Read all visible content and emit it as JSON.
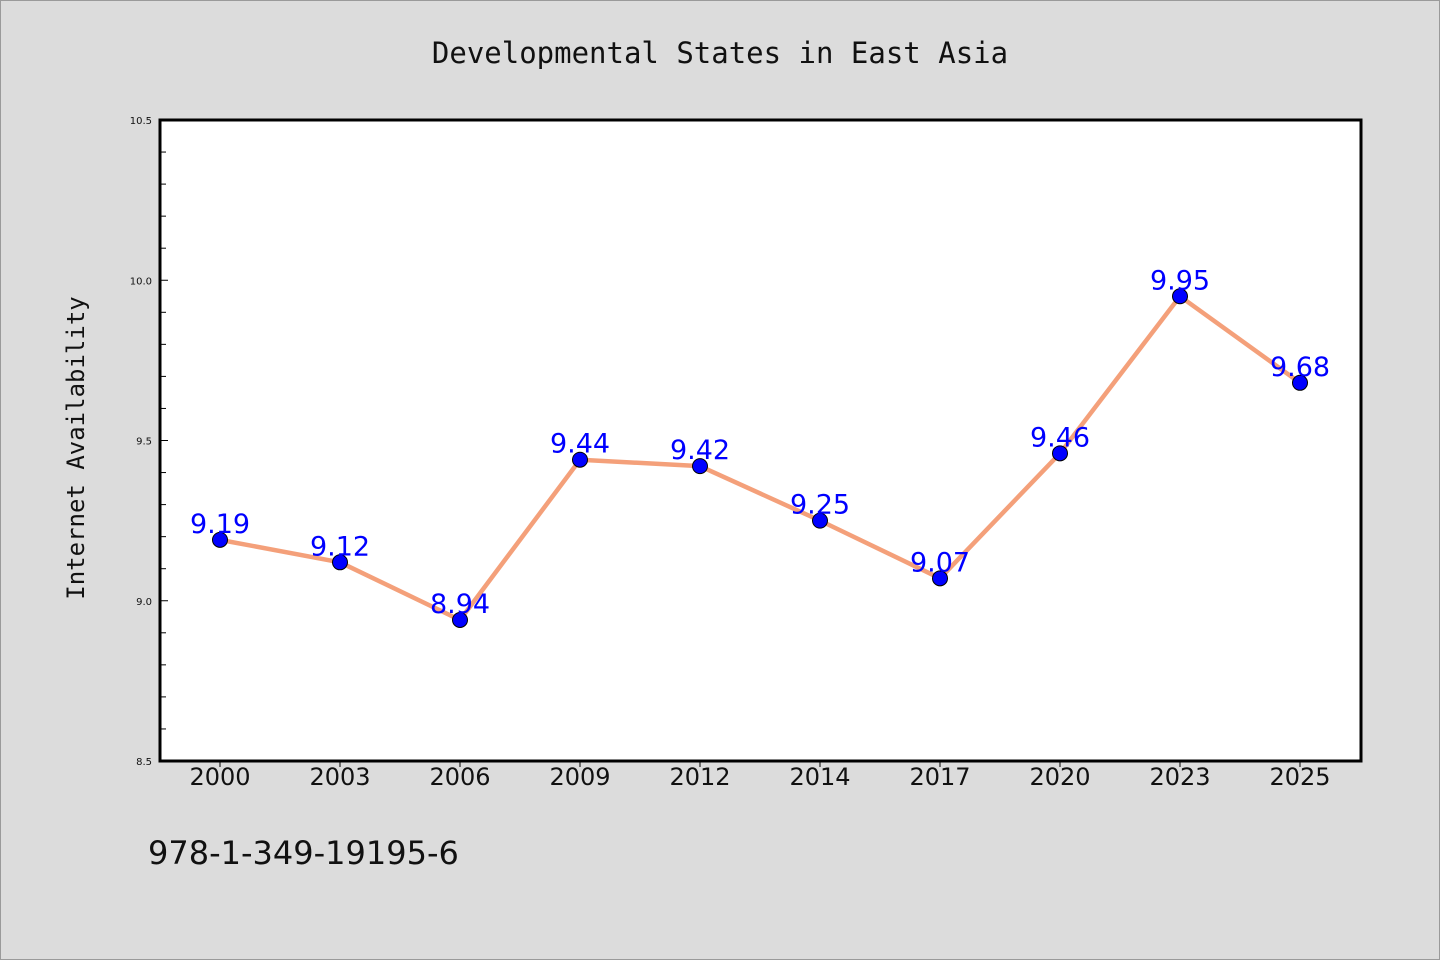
{
  "chart_data": {
    "type": "line",
    "title": "Developmental States in East Asia",
    "xlabel": "",
    "ylabel": "Internet Availability",
    "categories": [
      "2000",
      "2003",
      "2006",
      "2009",
      "2012",
      "2014",
      "2017",
      "2020",
      "2023",
      "2025"
    ],
    "series": [
      {
        "values": [
          9.19,
          9.12,
          8.94,
          9.44,
          9.42,
          9.25,
          9.07,
          9.46,
          9.95,
          9.68
        ],
        "line_color": "#f4a07a",
        "marker_color": "#0000ff"
      }
    ],
    "data_labels": [
      "9.19",
      "9.12",
      "8.94",
      "9.44",
      "9.42",
      "9.25",
      "9.07",
      "9.46",
      "9.95",
      "9.68"
    ],
    "ylim": [
      8.5,
      10.5
    ],
    "yticks": [
      "8.5",
      "9.0",
      "9.5",
      "10.0",
      "10.5"
    ],
    "grid": false,
    "legend": "none",
    "label_color": "#0000ff",
    "background_color": "#dcdcdc",
    "plot_background": "#ffffff"
  },
  "footer_text": "978-1-349-19195-6"
}
